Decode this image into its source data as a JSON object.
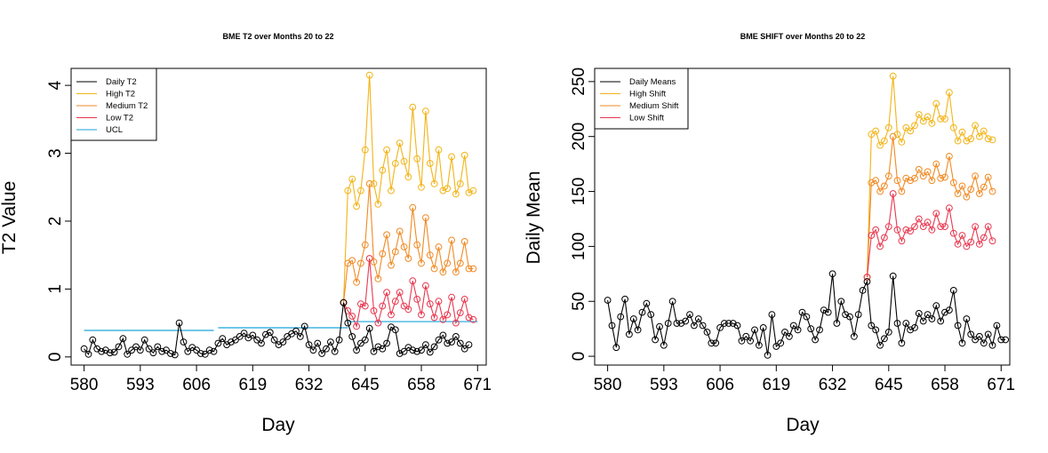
{
  "colors": {
    "daily": "#000000",
    "high": "#F2B418",
    "medium": "#F08A24",
    "low": "#E8384F",
    "ucl": "#1BA3DC"
  },
  "chart_data": [
    {
      "type": "line",
      "title": "BME T2 over Months 20 to 22",
      "xlabel": "Day",
      "ylabel": "T2 Value",
      "xlim": [
        577,
        673
      ],
      "ylim": [
        -0.12,
        4.25
      ],
      "xticks": [
        "580",
        "593",
        "606",
        "619",
        "632",
        "645",
        "658",
        "671"
      ],
      "yticks": [
        "0",
        "1",
        "2",
        "3",
        "4"
      ],
      "legend": "top-left",
      "legend_labels": [
        "Daily T2",
        "High T2",
        "Medium T2",
        "Low T2",
        "UCL"
      ],
      "x_start": 580,
      "series": [
        {
          "name": "Daily T2",
          "color_key": "daily",
          "start": 580,
          "values": [
            0.12,
            0.04,
            0.25,
            0.12,
            0.08,
            0.1,
            0.06,
            0.07,
            0.15,
            0.27,
            0.04,
            0.1,
            0.15,
            0.1,
            0.25,
            0.12,
            0.06,
            0.15,
            0.08,
            0.1,
            0.05,
            0.03,
            0.5,
            0.22,
            0.08,
            0.14,
            0.1,
            0.05,
            0.04,
            0.1,
            0.08,
            0.2,
            0.27,
            0.18,
            0.22,
            0.25,
            0.3,
            0.35,
            0.28,
            0.32,
            0.25,
            0.2,
            0.33,
            0.36,
            0.25,
            0.18,
            0.22,
            0.3,
            0.34,
            0.38,
            0.3,
            0.45,
            0.18,
            0.1,
            0.2,
            0.05,
            0.12,
            0.22,
            0.08,
            0.25,
            0.8,
            0.5,
            0.3,
            0.1,
            0.2,
            0.25,
            0.42,
            0.08,
            0.15,
            0.12,
            0.2,
            0.44,
            0.4,
            0.05,
            0.08,
            0.14,
            0.1,
            0.08,
            0.1,
            0.18,
            0.07,
            0.15,
            0.25,
            0.32,
            0.2,
            0.22,
            0.3,
            0.2,
            0.12,
            0.18
          ]
        },
        {
          "name": "High T2",
          "color_key": "high",
          "start": 640,
          "values": [
            0.8,
            2.45,
            2.62,
            2.22,
            2.45,
            3.05,
            4.15,
            2.55,
            2.25,
            2.75,
            3.05,
            2.45,
            2.85,
            3.15,
            2.88,
            2.65,
            3.68,
            2.92,
            2.5,
            3.62,
            2.85,
            2.55,
            3.05,
            2.45,
            2.48,
            2.95,
            2.4,
            2.55,
            2.97,
            2.42,
            2.45
          ]
        },
        {
          "name": "Medium T2",
          "color_key": "medium",
          "start": 640,
          "values": [
            0.8,
            1.38,
            1.42,
            1.1,
            1.38,
            1.65,
            2.55,
            1.4,
            1.15,
            1.52,
            1.8,
            1.35,
            1.55,
            1.85,
            1.62,
            1.45,
            2.2,
            1.65,
            1.38,
            2.05,
            1.5,
            1.3,
            1.62,
            1.25,
            1.38,
            1.72,
            1.25,
            1.38,
            1.7,
            1.3,
            1.3
          ]
        },
        {
          "name": "Low T2",
          "color_key": "low",
          "start": 640,
          "values": [
            0.8,
            0.68,
            0.6,
            0.45,
            0.78,
            0.75,
            1.45,
            0.68,
            0.5,
            0.75,
            0.95,
            0.62,
            0.82,
            0.95,
            0.75,
            0.7,
            1.12,
            0.85,
            0.62,
            1.05,
            0.78,
            0.58,
            0.82,
            0.55,
            0.62,
            0.88,
            0.5,
            0.65,
            0.85,
            0.58,
            0.55
          ]
        }
      ],
      "ucl_segments": [
        {
          "x": [
            580,
            610
          ],
          "y": 0.39
        },
        {
          "x": [
            611,
            641
          ],
          "y": 0.43
        },
        {
          "x": [
            641,
            671
          ],
          "y": 0.52
        }
      ]
    },
    {
      "type": "line",
      "title": "BME SHIFT over Months 20 to 22",
      "xlabel": "Day",
      "ylabel": "Daily Mean",
      "xlim": [
        577,
        673
      ],
      "ylim": [
        -8,
        262
      ],
      "xticks": [
        "580",
        "593",
        "606",
        "619",
        "632",
        "645",
        "658",
        "671"
      ],
      "yticks": [
        "0",
        "50",
        "100",
        "150",
        "200",
        "250"
      ],
      "legend": "top-left",
      "legend_labels": [
        "Daily Means",
        "High Shift",
        "Medium Shift",
        "Low Shift"
      ],
      "series": [
        {
          "name": "Daily Means",
          "color_key": "daily",
          "start": 580,
          "values": [
            51,
            28,
            8,
            36,
            52,
            20,
            34,
            24,
            40,
            48,
            38,
            15,
            27,
            10,
            30,
            50,
            30,
            30,
            32,
            38,
            28,
            34,
            28,
            22,
            12,
            12,
            26,
            30,
            30,
            30,
            28,
            14,
            18,
            14,
            24,
            10,
            26,
            1,
            38,
            9,
            12,
            22,
            18,
            28,
            24,
            40,
            36,
            25,
            15,
            24,
            42,
            40,
            75,
            30,
            50,
            38,
            36,
            18,
            38,
            60,
            68,
            28,
            24,
            10,
            16,
            22,
            73,
            30,
            12,
            30,
            24,
            26,
            39,
            32,
            38,
            34,
            46,
            32,
            40,
            42,
            60,
            28,
            12,
            34,
            20,
            15,
            18,
            12,
            20,
            10,
            28,
            15,
            15
          ]
        },
        {
          "name": "High Shift",
          "color_key": "high",
          "start": 640,
          "values": [
            72,
            202,
            205,
            192,
            196,
            208,
            255,
            202,
            195,
            208,
            205,
            210,
            220,
            214,
            218,
            212,
            230,
            216,
            216,
            240,
            208,
            196,
            204,
            196,
            198,
            210,
            200,
            205,
            198,
            197
          ]
        },
        {
          "name": "Medium Shift",
          "color_key": "medium",
          "start": 640,
          "values": [
            72,
            158,
            160,
            150,
            155,
            164,
            200,
            160,
            150,
            162,
            160,
            162,
            170,
            164,
            168,
            160,
            175,
            162,
            163,
            182,
            158,
            148,
            155,
            145,
            152,
            164,
            148,
            154,
            163,
            150
          ]
        },
        {
          "name": "Low Shift",
          "color_key": "low",
          "start": 640,
          "values": [
            72,
            110,
            115,
            100,
            108,
            118,
            148,
            115,
            105,
            115,
            114,
            118,
            125,
            118,
            122,
            115,
            130,
            118,
            118,
            135,
            112,
            102,
            110,
            100,
            104,
            118,
            102,
            108,
            118,
            105
          ]
        }
      ]
    }
  ]
}
